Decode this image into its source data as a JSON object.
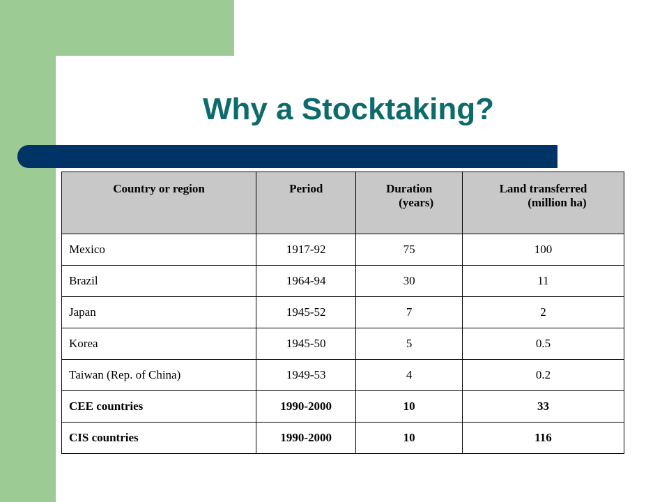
{
  "slide": {
    "title": "Why a Stocktaking?"
  },
  "table": {
    "headers": [
      {
        "line1": "Country or region",
        "line2": ""
      },
      {
        "line1": "Period",
        "line2": ""
      },
      {
        "line1": "Duration",
        "line2": "(years)"
      },
      {
        "line1": "Land transferred",
        "line2": "(million ha)"
      }
    ],
    "rows": [
      {
        "country": "Mexico",
        "period": "1917-92",
        "duration": "75",
        "land": "100",
        "bold": false
      },
      {
        "country": "Brazil",
        "period": "1964-94",
        "duration": "30",
        "land": "11",
        "bold": false
      },
      {
        "country": "Japan",
        "period": "1945-52",
        "duration": "7",
        "land": "2",
        "bold": false
      },
      {
        "country": "Korea",
        "period": "1945-50",
        "duration": "5",
        "land": "0.5",
        "bold": false
      },
      {
        "country": "Taiwan (Rep. of China)",
        "period": "1949-53",
        "duration": "4",
        "land": "0.2",
        "bold": false
      },
      {
        "country": "CEE countries",
        "period": "1990-2000",
        "duration": "10",
        "land": "33",
        "bold": true
      },
      {
        "country": "CIS countries",
        "period": "1990-2000",
        "duration": "10",
        "land": "116",
        "bold": true
      }
    ]
  },
  "colors": {
    "accent_green": "#9dcb94",
    "title_teal": "#0e6b6b",
    "bar_navy": "#003366",
    "header_gray": "#c8c8c8"
  }
}
